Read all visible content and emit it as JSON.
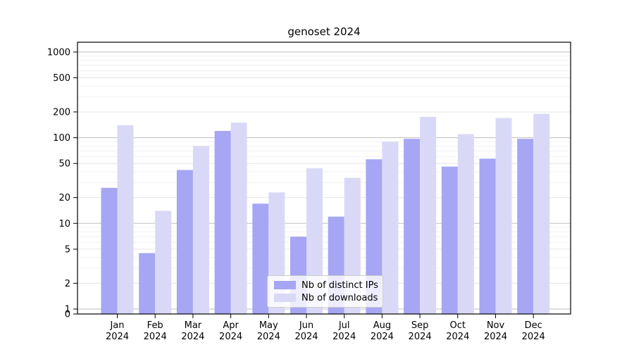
{
  "chart_data": {
    "type": "bar",
    "title": "genoset 2024",
    "categories": [
      "Jan",
      "Feb",
      "Mar",
      "Apr",
      "May",
      "Jun",
      "Jul",
      "Aug",
      "Sep",
      "Oct",
      "Nov",
      "Dec"
    ],
    "category_year": "2024",
    "series": [
      {
        "name": "Nb of distinct IPs",
        "color": "#a6a6f4",
        "values": [
          26,
          4.5,
          42,
          120,
          17,
          7,
          12,
          56,
          97,
          46,
          57,
          97
        ]
      },
      {
        "name": "Nb of downloads",
        "color": "#d9d9f7",
        "values": [
          140,
          14,
          80,
          150,
          23,
          44,
          34,
          90,
          175,
          110,
          170,
          190
        ]
      }
    ],
    "xlabel": "",
    "ylabel": "",
    "yscale": "symlog",
    "y_ticks": [
      1000,
      500,
      200,
      100,
      50,
      20,
      10,
      5,
      2,
      1,
      0
    ],
    "ylim": [
      0,
      1400
    ],
    "grid": true,
    "legend_position": "lower center",
    "colors": {
      "major_grid": "#bfbfbf",
      "mid_grid": "#e6e6e6",
      "minor_grid": "#f2f2f2",
      "axis": "#000000",
      "text": "#000000"
    }
  }
}
